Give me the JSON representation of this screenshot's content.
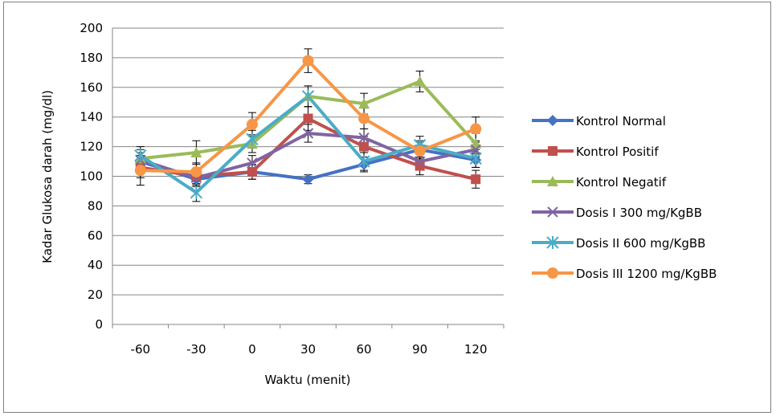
{
  "chart_data": {
    "type": "line",
    "title": "",
    "xlabel": "Waktu (menit)",
    "ylabel": "Kadar Glukosa darah (mg/dl)",
    "x": [
      "-60",
      "-30",
      "0",
      "30",
      "60",
      "90",
      "120"
    ],
    "ylim": [
      0,
      200
    ],
    "yticks": [
      "0",
      "20",
      "40",
      "60",
      "80",
      "100",
      "120",
      "140",
      "160",
      "180",
      "200"
    ],
    "grid": true,
    "legend_position": "right",
    "error_bars": true,
    "series": [
      {
        "name": "Kontrol Normal",
        "color": "#4472C4",
        "marker": "diamond",
        "values": [
          110,
          98,
          103,
          98,
          108,
          118,
          111
        ],
        "errors": [
          6,
          5,
          5,
          3,
          5,
          6,
          5
        ]
      },
      {
        "name": "Kontrol Positif",
        "color": "#C0504D",
        "marker": "square",
        "values": [
          106,
          100,
          103,
          139,
          120,
          107,
          98
        ],
        "errors": [
          7,
          5,
          5,
          8,
          7,
          6,
          6
        ]
      },
      {
        "name": "Kontrol Negatif",
        "color": "#9BBB59",
        "marker": "triangle",
        "values": [
          112,
          116,
          122,
          154,
          149,
          164,
          122
        ],
        "errors": [
          6,
          8,
          6,
          7,
          7,
          7,
          7
        ]
      },
      {
        "name": "Dosis I 300 mg/KgBB",
        "color": "#8064A2",
        "marker": "x",
        "values": [
          111,
          99,
          109,
          129,
          126,
          110,
          118
        ],
        "errors": [
          5,
          5,
          5,
          6,
          6,
          5,
          5
        ]
      },
      {
        "name": "Dosis II 600 mg/KgBB",
        "color": "#4BACC6",
        "marker": "star",
        "values": [
          114,
          89,
          125,
          154,
          110,
          121,
          112
        ],
        "errors": [
          6,
          6,
          6,
          7,
          6,
          6,
          6
        ]
      },
      {
        "name": "Dosis III 1200 mg/KgBB",
        "color": "#F79646",
        "marker": "circle",
        "values": [
          104,
          103,
          135,
          178,
          139,
          117,
          132
        ],
        "errors": [
          10,
          6,
          8,
          8,
          7,
          6,
          8
        ]
      }
    ]
  }
}
